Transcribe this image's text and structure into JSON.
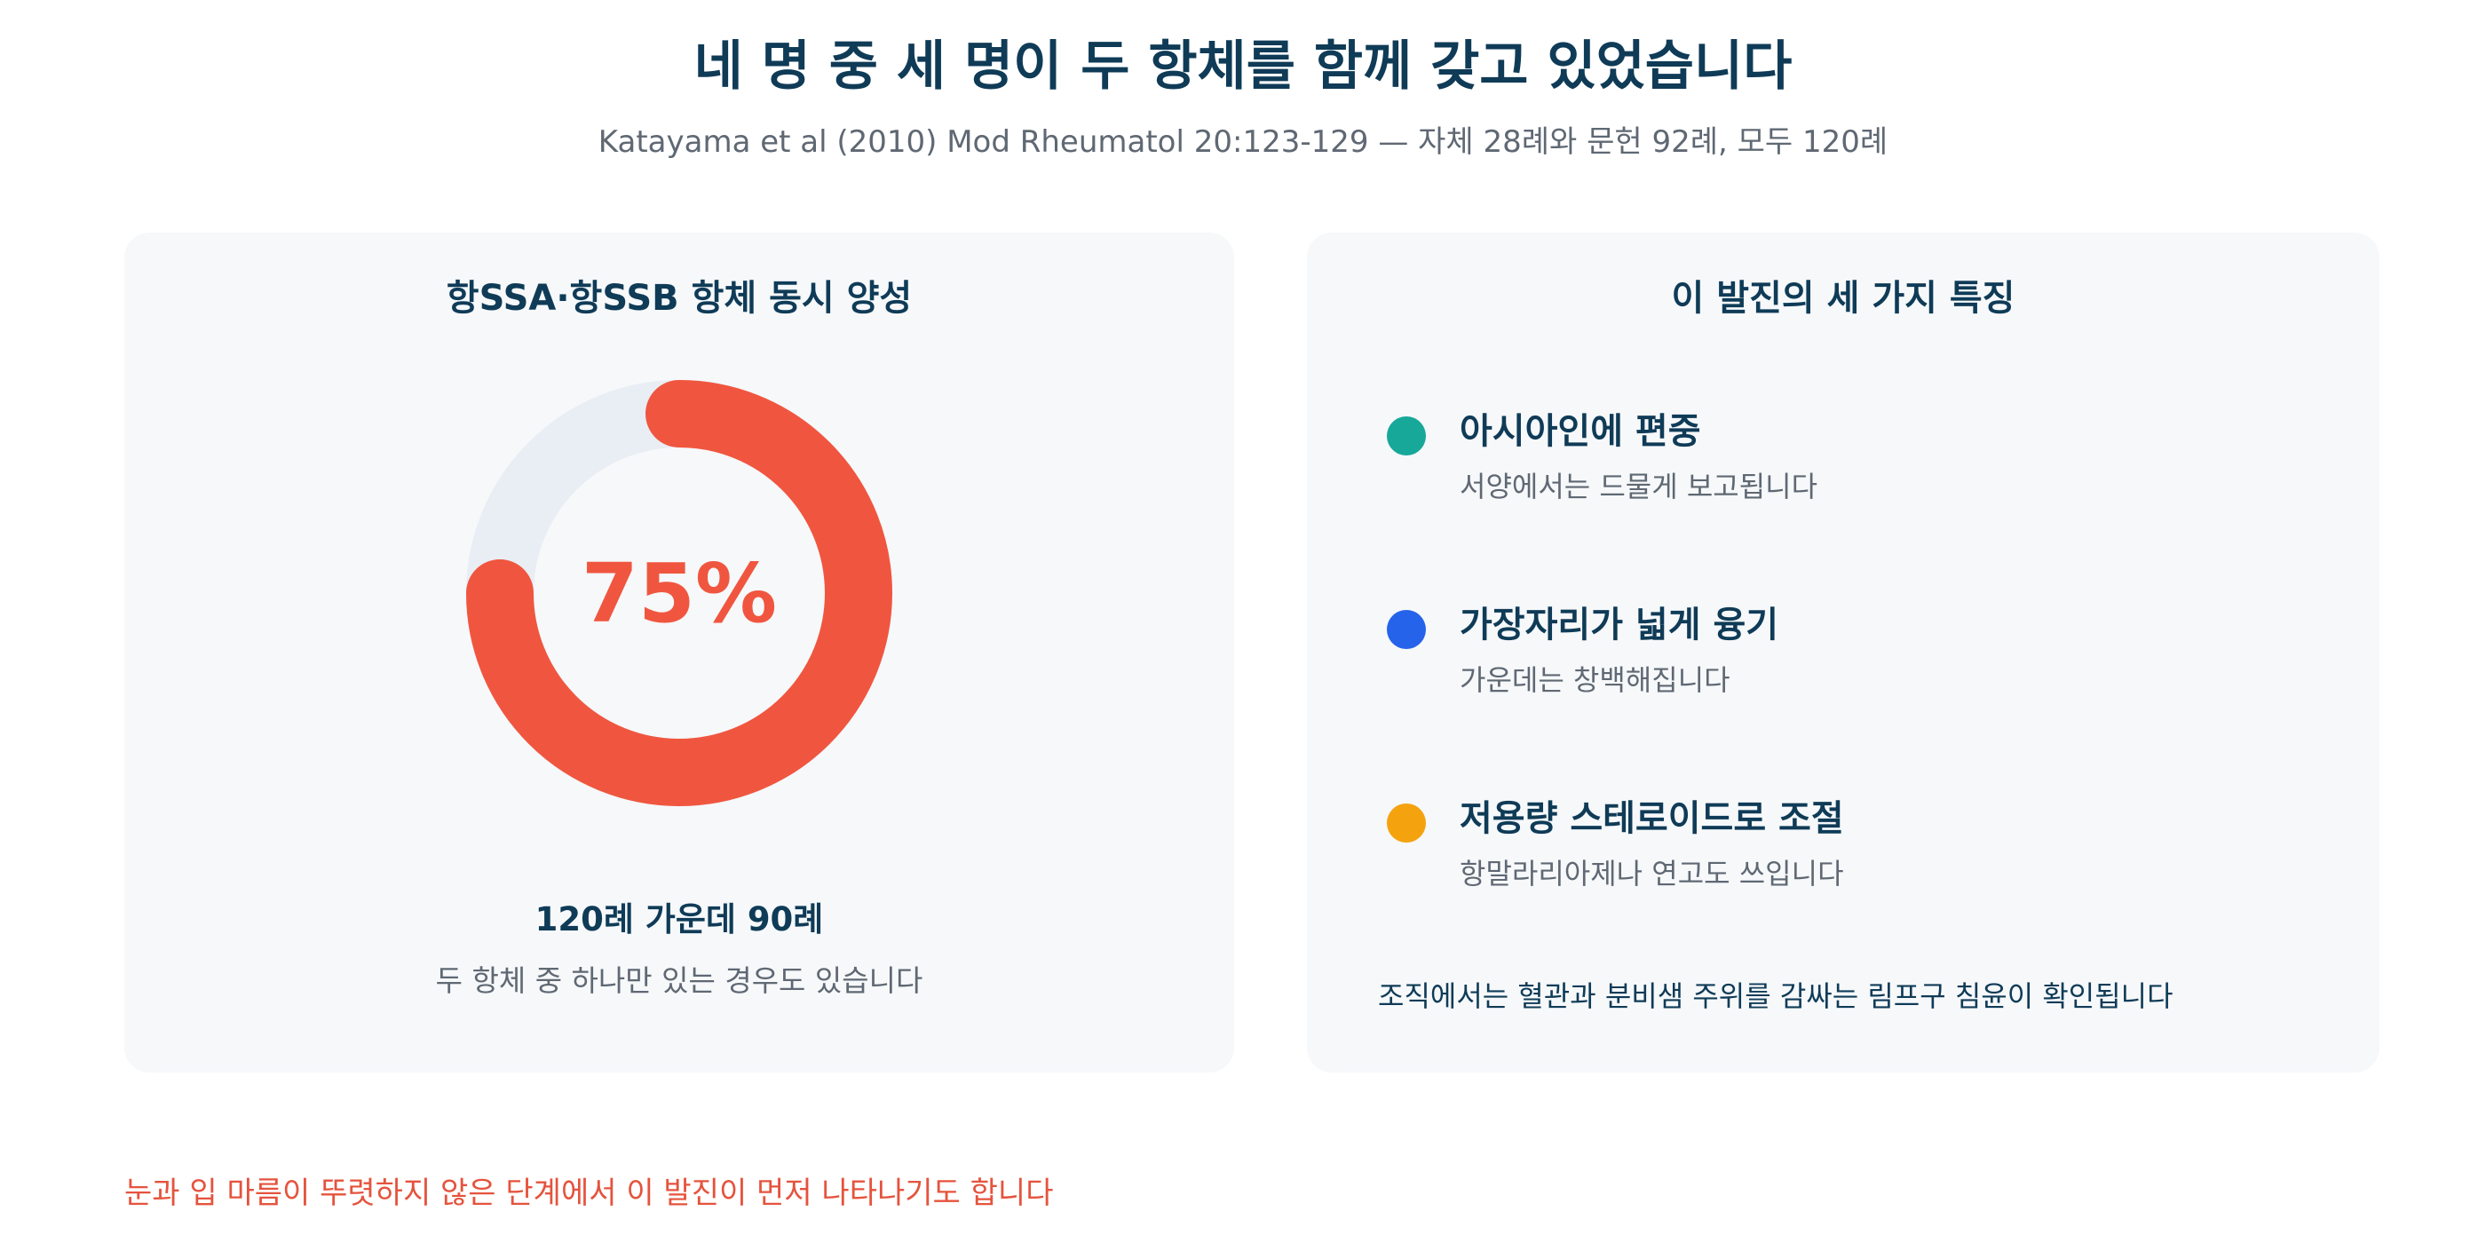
{
  "header": {
    "title": "네 명 중 세 명이 두 항체를 함께 갖고 있었습니다",
    "subtitle": "Katayama et al (2010) Mod Rheumatol 20:123-129 — 자체 28례와 문헌 92례, 모두 120례"
  },
  "left_panel": {
    "title": "항SSA·항SSB 항체 동시 양성",
    "value_label": "75%",
    "stat_main": "120례 가운데 90례",
    "stat_sub": "두 항체 중 하나만 있는 경우도 있습니다"
  },
  "right_panel": {
    "title": "이 발진의 세 가지 특징",
    "features": [
      {
        "title": "아시아인에 편중",
        "desc": "서양에서는 드물게 보고됩니다",
        "color": "#17a89a"
      },
      {
        "title": "가장자리가 넓게 융기",
        "desc": "가운데는 창백해집니다",
        "color": "#2563eb"
      },
      {
        "title": "저용량 스테로이드로 조절",
        "desc": "항말라리아제나 연고도 쓰입니다",
        "color": "#f4a30f"
      }
    ],
    "note": "조직에서는 혈관과 분비샘 주위를 감싸는 림프구 침윤이 확인됩니다"
  },
  "footnote": "눈과 입 마름이 뚜렷하지 않은 단계에서 이 발진이 먼저 나타나기도 합니다",
  "colors": {
    "accent": "#f0563f",
    "track": "#e9eef4",
    "heading": "#0f3b57",
    "muted": "#5f6873"
  },
  "chart_data": {
    "type": "pie",
    "title": "항SSA·항SSB 항체 동시 양성",
    "slices": [
      {
        "label": "120례 가운데 90례",
        "value": 75
      },
      {
        "label": "",
        "value": 25
      }
    ],
    "center_label": "75%",
    "total_cases": 120,
    "positive_cases": 90
  }
}
